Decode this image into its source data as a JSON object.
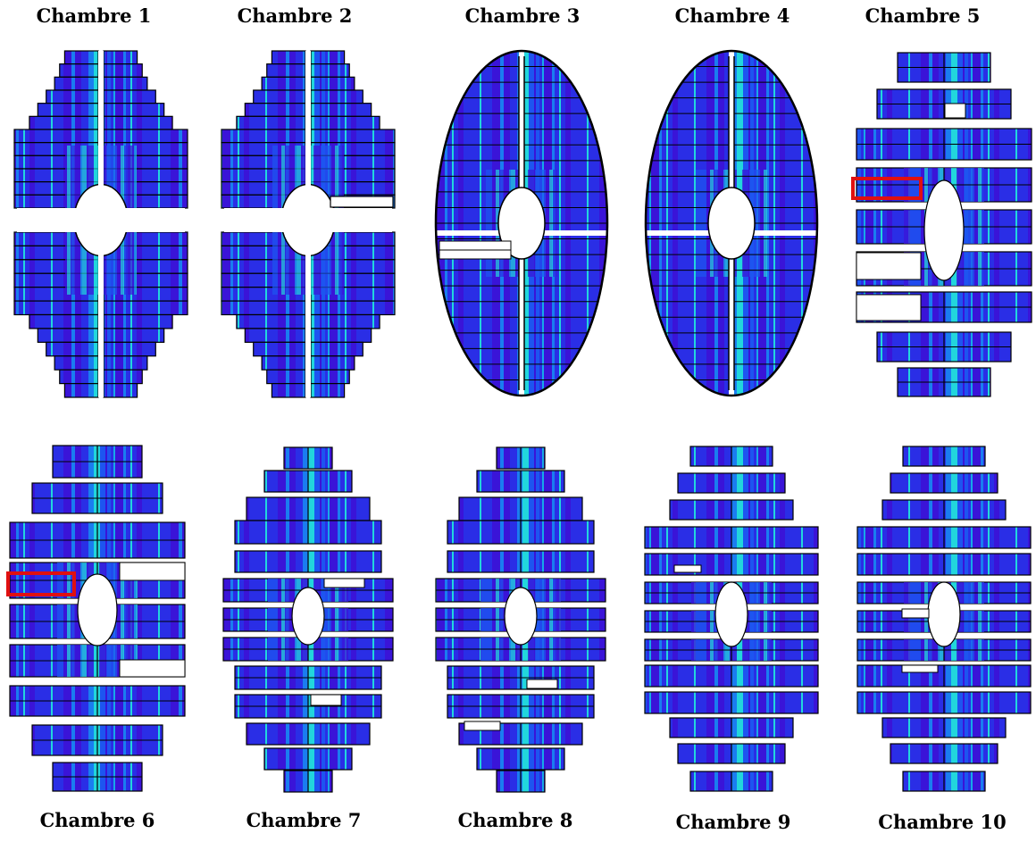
{
  "figure": {
    "chambers": [
      {
        "label": "Chambre 1",
        "shape": "stepped"
      },
      {
        "label": "Chambre 2",
        "shape": "stepped"
      },
      {
        "label": "Chambre 3",
        "shape": "ellipse"
      },
      {
        "label": "Chambre 4",
        "shape": "ellipse"
      },
      {
        "label": "Chambre 5",
        "shape": "bands",
        "highlighted": true
      },
      {
        "label": "Chambre 6",
        "shape": "bands",
        "highlighted": true
      },
      {
        "label": "Chambre 7",
        "shape": "bands"
      },
      {
        "label": "Chambre 8",
        "shape": "bands"
      },
      {
        "label": "Chambre 9",
        "shape": "bands"
      },
      {
        "label": "Chambre 10",
        "shape": "bands"
      }
    ],
    "colormap": [
      "#3a14d8",
      "#2a2ee6",
      "#1d55f0",
      "#1a7df0",
      "#17a8e8",
      "#22d6dc",
      "#3ef0b0",
      "#7cf05a"
    ],
    "outline_color": "#000000",
    "highlight_color": "#e01010",
    "background": "#ffffff"
  }
}
